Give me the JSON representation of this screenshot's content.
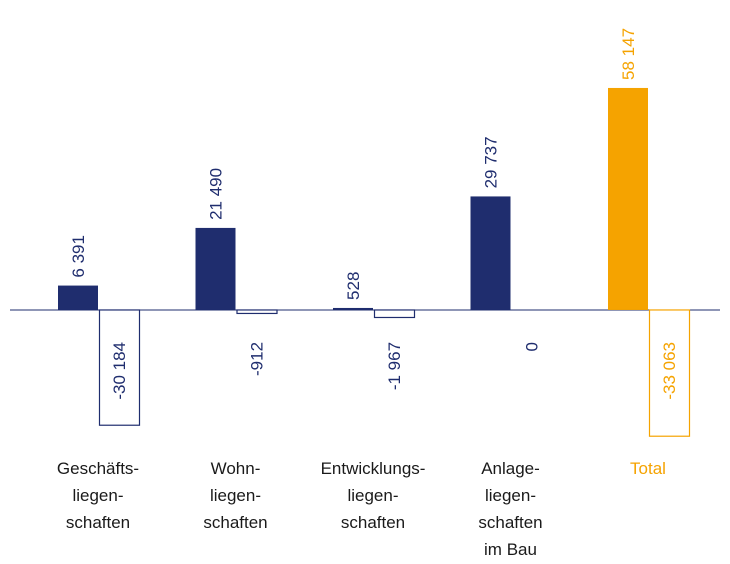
{
  "chart_data": {
    "type": "bar",
    "categories": [
      [
        "Geschäfts-",
        "liegen-",
        "schaften"
      ],
      [
        "Wohn-",
        "liegen-",
        "schaften"
      ],
      [
        "Entwicklungs-",
        "liegen-",
        "schaften"
      ],
      [
        "Anlage-",
        "liegen-",
        "schaften",
        "im Bau"
      ],
      [
        "Total"
      ]
    ],
    "series": [
      {
        "style": "filled",
        "color": "#1f2d6e",
        "colors": [
          "#1f2d6e",
          "#1f2d6e",
          "#1f2d6e",
          "#1f2d6e",
          "#f5a300"
        ],
        "values": [
          6391,
          21490,
          528,
          29737,
          58147
        ],
        "value_labels": [
          "6 391",
          "21 490",
          "528",
          "29 737",
          "58 147"
        ]
      },
      {
        "style": "outline",
        "color": "#1f2d6e",
        "colors": [
          "#1f2d6e",
          "#1f2d6e",
          "#1f2d6e",
          "#1f2d6e",
          "#f5a300"
        ],
        "values": [
          -30184,
          -912,
          -1967,
          0,
          -33063
        ],
        "value_labels": [
          "-30 184",
          "-912",
          "-1 967",
          "0",
          "-33 063"
        ]
      }
    ],
    "ylim": [
      -40000,
      70000
    ]
  }
}
